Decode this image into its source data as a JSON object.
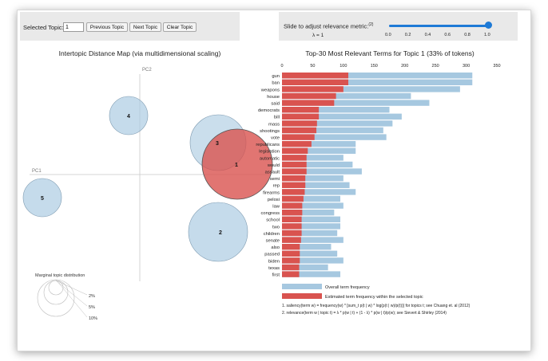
{
  "controls": {
    "topic_label": "Selected Topic:",
    "topic_value": "1",
    "prev_label": "Previous Topic",
    "next_label": "Next Topic",
    "clear_label": "Clear Topic",
    "relevance_label": "Slide to adjust relevance metric:",
    "relevance_sup": "(2)",
    "lambda_text": "λ = 1",
    "slider_value": 1.0,
    "slider_ticks": [
      "0.0",
      "0.2",
      "0.4",
      "0.6",
      "0.8",
      "1.0"
    ]
  },
  "left_panel": {
    "title": "Intertopic Distance Map (via multidimensional scaling)",
    "pc1_label": "PC1",
    "pc2_label": "PC2",
    "topics": [
      {
        "id": "1",
        "selected": true
      },
      {
        "id": "2",
        "selected": false
      },
      {
        "id": "3",
        "selected": false
      },
      {
        "id": "4",
        "selected": false
      },
      {
        "id": "5",
        "selected": false
      }
    ],
    "marginal_title": "Marginal topic distribution",
    "marginal_labels": [
      "2%",
      "5%",
      "10%"
    ]
  },
  "chart_data": {
    "type": "bar",
    "title": "Top-30 Most Relevant Terms for Topic 1 (33% of tokens)",
    "x_ticks": [
      0,
      50,
      100,
      150,
      200,
      250,
      300,
      350
    ],
    "xlim": [
      0,
      350
    ],
    "terms": [
      "gun",
      "ban",
      "weapons",
      "house",
      "said",
      "democrats",
      "bill",
      "mass",
      "shootings",
      "vote",
      "republicans",
      "legislation",
      "automatic",
      "would",
      "assault",
      "semi",
      "rep",
      "firearms",
      "pelosi",
      "law",
      "congress",
      "school",
      "two",
      "children",
      "senate",
      "also",
      "passed",
      "biden",
      "texas",
      "first"
    ],
    "series": [
      {
        "name": "Overall term frequency",
        "values": [
          310,
          310,
          290,
          210,
          240,
          175,
          195,
          180,
          165,
          170,
          120,
          120,
          100,
          115,
          130,
          100,
          110,
          120,
          95,
          100,
          85,
          95,
          95,
          90,
          100,
          80,
          90,
          100,
          75,
          95
        ]
      },
      {
        "name": "Estimated term frequency within the selected topic",
        "values": [
          108,
          108,
          100,
          88,
          85,
          60,
          60,
          57,
          56,
          53,
          48,
          42,
          40,
          40,
          40,
          38,
          38,
          37,
          35,
          33,
          33,
          32,
          32,
          32,
          31,
          29,
          29,
          29,
          28,
          28
        ]
      }
    ],
    "legend": [
      "Overall term frequency",
      "Estimated term frequency within the selected topic"
    ],
    "colors": {
      "overall": "#a6c8e0",
      "selected": "#d9534f"
    }
  },
  "footnotes": [
    "1. saliency(term w) = frequency(w) * [sum_t p(t | w) * log(p(t | w)/p(t))] for topics t; see Chuang et. al (2012)",
    "2. relevance(term w | topic t) = λ * p(w | t) + (1 - λ) * p(w | t)/p(w); see Sievert & Shirley (2014)"
  ]
}
